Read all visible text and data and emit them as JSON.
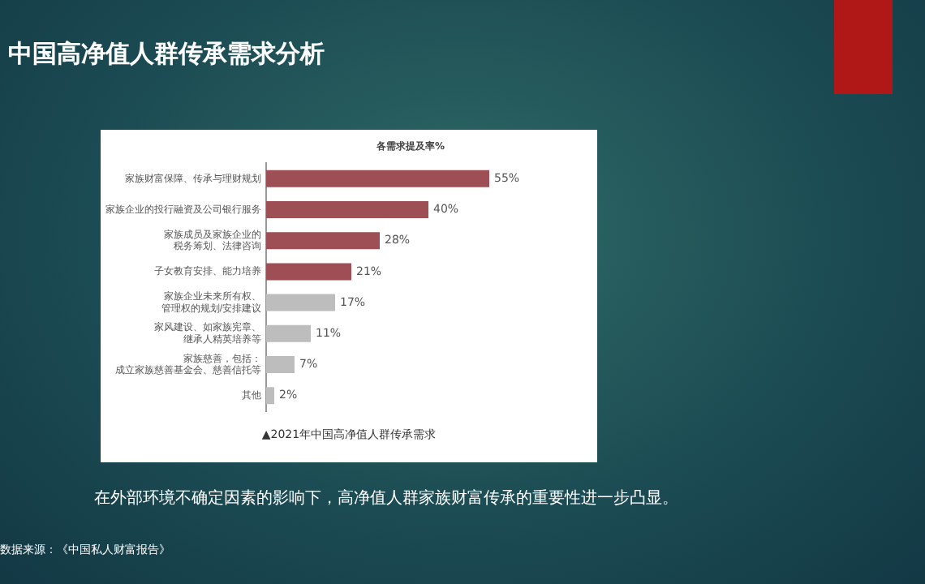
{
  "chart_data": {
    "type": "bar",
    "orientation": "horizontal",
    "title": "中国高净值人群传承需求分析",
    "xlabel": "各需求提及率%",
    "categories": [
      "家族财富保障、传承与理财规划",
      "家族企业的投行融资及公司银行服务",
      "家族成员及家族企业的税务筹划、法律咨询",
      "子女教育安排、能力培养",
      "家族企业未来所有权、管理权的规划/安排建议",
      "家风建设、如家族宪章、继承人精英培养等",
      "家族慈善，包括：成立家族慈善基金会、慈善信托等",
      "其他"
    ],
    "values": [
      55,
      40,
      28,
      21,
      17,
      11,
      7,
      2
    ],
    "colors": [
      "#9e4f55",
      "#9e4f55",
      "#9e4f55",
      "#9e4f55",
      "#bdbdbd",
      "#bdbdbd",
      "#bdbdbd",
      "#bdbdbd"
    ],
    "value_labels": [
      "55%",
      "40%",
      "28%",
      "21%",
      "17%",
      "11%",
      "7%",
      "2%"
    ],
    "tick_labels": "y",
    "grid": false,
    "legend": false,
    "annotations": [
      "▲2021年中国高净值人群传承需求",
      "在外部环境不确定因素的影响下，高净值人群家族财富传承的重要性进一步凸显。",
      "数据来源：《中国私人财富报告》"
    ]
  }
}
